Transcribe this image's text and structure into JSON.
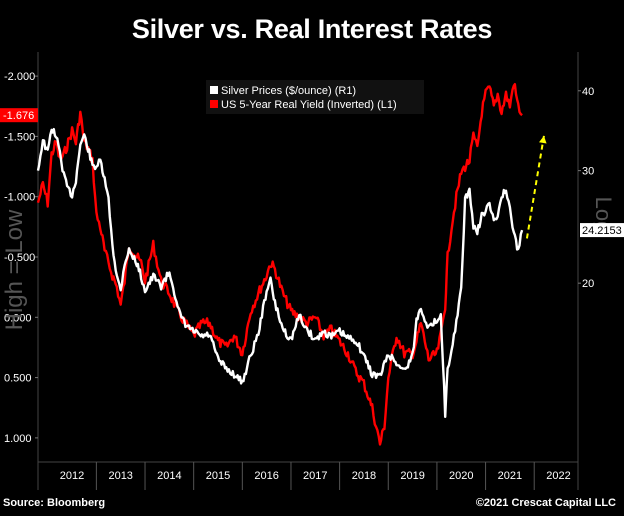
{
  "chart_data": {
    "type": "line",
    "title": "Silver vs. Real Interest Rates",
    "left_axis": {
      "label": "High = Low",
      "ticks": [
        "-2.000",
        "-1.500",
        "-1.000",
        "-0.500",
        "0.000",
        "0.500",
        "1.000"
      ],
      "tick_values": [
        -2.0,
        -1.5,
        -1.0,
        -0.5,
        0.0,
        0.5,
        1.0
      ],
      "range": [
        -2.2,
        1.2
      ],
      "inverted": true,
      "current_value_label": "-1.676",
      "current_value": -1.676
    },
    "right_axis": {
      "label": "Log",
      "scale": "log",
      "ticks": [
        "40",
        "30",
        "20"
      ],
      "tick_values": [
        40,
        30,
        20
      ],
      "range": [
        10.5,
        46
      ],
      "current_value_label": "24.2153",
      "current_value": 24.2153
    },
    "x_axis": {
      "ticks": [
        "2012",
        "2013",
        "2014",
        "2015",
        "2016",
        "2017",
        "2018",
        "2019",
        "2020",
        "2021",
        "2022"
      ],
      "range": [
        2011.8,
        2022.9
      ]
    },
    "legend": {
      "placement": "top-center",
      "entries": [
        {
          "label": "Silver Prices ($/ounce) (R1)",
          "color": "#ffffff"
        },
        {
          "label": "US 5-Year Real Yield (Inverted) (L1)",
          "color": "#ff0000"
        }
      ]
    },
    "series": [
      {
        "name": "Silver Prices ($/ounce) (R1)",
        "axis": "right",
        "color": "#ffffff",
        "x": [
          2011.8,
          2011.9,
          2012.0,
          2012.08,
          2012.17,
          2012.25,
          2012.33,
          2012.42,
          2012.5,
          2012.58,
          2012.67,
          2012.75,
          2012.83,
          2012.92,
          2013.0,
          2013.08,
          2013.17,
          2013.25,
          2013.33,
          2013.42,
          2013.5,
          2013.58,
          2013.67,
          2013.75,
          2013.83,
          2013.92,
          2014.0,
          2014.17,
          2014.33,
          2014.5,
          2014.58,
          2014.67,
          2014.83,
          2015.0,
          2015.17,
          2015.33,
          2015.5,
          2015.67,
          2015.83,
          2016.0,
          2016.17,
          2016.33,
          2016.5,
          2016.58,
          2016.67,
          2016.83,
          2017.0,
          2017.17,
          2017.33,
          2017.5,
          2017.67,
          2017.83,
          2018.0,
          2018.17,
          2018.33,
          2018.5,
          2018.67,
          2018.83,
          2019.0,
          2019.17,
          2019.33,
          2019.5,
          2019.58,
          2019.67,
          2019.83,
          2020.0,
          2020.08,
          2020.17,
          2020.22,
          2020.3,
          2020.4,
          2020.5,
          2020.58,
          2020.67,
          2020.75,
          2020.83,
          2020.92,
          2021.0,
          2021.08,
          2021.17,
          2021.25,
          2021.33,
          2021.42,
          2021.5,
          2021.58,
          2021.67,
          2021.75
        ],
        "y": [
          30.0,
          33.5,
          32.0,
          35.0,
          34.0,
          32.0,
          29.5,
          28.0,
          27.5,
          29.0,
          33.0,
          34.0,
          32.5,
          30.5,
          30.5,
          31.0,
          29.0,
          27.0,
          23.0,
          20.5,
          19.5,
          21.5,
          22.5,
          22.0,
          21.5,
          20.5,
          19.5,
          20.5,
          19.8,
          20.8,
          19.8,
          18.2,
          17.2,
          16.8,
          16.5,
          16.6,
          15.2,
          14.7,
          14.4,
          14.0,
          15.4,
          16.7,
          19.5,
          20.2,
          18.6,
          17.0,
          16.3,
          17.8,
          16.9,
          16.3,
          16.8,
          16.5,
          16.8,
          16.4,
          16.3,
          15.4,
          14.4,
          14.3,
          15.5,
          15.0,
          14.6,
          15.4,
          17.5,
          18.3,
          17.0,
          17.5,
          18.0,
          12.5,
          14.6,
          15.5,
          17.5,
          19.5,
          27.0,
          28.0,
          24.5,
          24.0,
          25.5,
          26.0,
          26.5,
          25.0,
          25.5,
          27.5,
          27.8,
          26.0,
          24.0,
          22.5,
          24.2153
        ]
      },
      {
        "name": "US 5-Year Real Yield (Inverted) (L1)",
        "axis": "left",
        "color": "#ff0000",
        "x": [
          2011.8,
          2011.9,
          2012.0,
          2012.08,
          2012.17,
          2012.25,
          2012.33,
          2012.42,
          2012.5,
          2012.58,
          2012.67,
          2012.75,
          2012.83,
          2012.92,
          2013.0,
          2013.08,
          2013.17,
          2013.25,
          2013.33,
          2013.42,
          2013.5,
          2013.58,
          2013.67,
          2013.75,
          2013.83,
          2013.92,
          2014.0,
          2014.17,
          2014.33,
          2014.5,
          2014.67,
          2014.83,
          2015.0,
          2015.17,
          2015.33,
          2015.5,
          2015.67,
          2015.83,
          2016.0,
          2016.17,
          2016.33,
          2016.5,
          2016.58,
          2016.67,
          2016.83,
          2017.0,
          2017.17,
          2017.33,
          2017.5,
          2017.67,
          2017.83,
          2018.0,
          2018.17,
          2018.33,
          2018.5,
          2018.67,
          2018.83,
          2018.92,
          2019.0,
          2019.17,
          2019.33,
          2019.5,
          2019.58,
          2019.67,
          2019.83,
          2020.0,
          2020.08,
          2020.17,
          2020.22,
          2020.3,
          2020.4,
          2020.5,
          2020.58,
          2020.67,
          2020.75,
          2020.83,
          2020.92,
          2021.0,
          2021.08,
          2021.17,
          2021.25,
          2021.33,
          2021.42,
          2021.5,
          2021.58,
          2021.67,
          2021.75
        ],
        "y": [
          -0.95,
          -1.1,
          -0.95,
          -1.35,
          -1.45,
          -1.3,
          -1.35,
          -1.45,
          -1.55,
          -1.45,
          -1.7,
          -1.45,
          -1.4,
          -1.3,
          -0.85,
          -0.75,
          -0.55,
          -0.45,
          -0.35,
          -0.25,
          -0.1,
          -0.3,
          -0.6,
          -0.55,
          -0.5,
          -0.45,
          -0.3,
          -0.6,
          -0.3,
          -0.2,
          -0.05,
          0.05,
          0.15,
          0.05,
          0.05,
          0.2,
          0.25,
          0.15,
          0.3,
          -0.05,
          -0.2,
          -0.35,
          -0.45,
          -0.4,
          -0.2,
          -0.05,
          0.0,
          0.05,
          0.0,
          0.15,
          0.1,
          0.2,
          0.3,
          0.45,
          0.55,
          0.75,
          1.05,
          0.9,
          0.5,
          0.15,
          0.3,
          0.3,
          0.2,
          0.05,
          0.35,
          0.3,
          0.15,
          -0.1,
          -0.5,
          -0.75,
          -1.0,
          -1.2,
          -1.25,
          -1.3,
          -1.5,
          -1.4,
          -1.7,
          -1.85,
          -1.9,
          -1.75,
          -1.85,
          -1.7,
          -1.85,
          -1.75,
          -1.95,
          -1.75,
          -1.676
        ]
      }
    ],
    "annotations": [
      {
        "type": "dashed-arrow",
        "color": "#ffff00",
        "from": [
          2021.85,
          23.5
        ],
        "to": [
          2022.2,
          34.0
        ]
      }
    ]
  },
  "footer": {
    "source": "Source: Bloomberg",
    "copyright": "©2021 Crescat Capital LLC"
  }
}
